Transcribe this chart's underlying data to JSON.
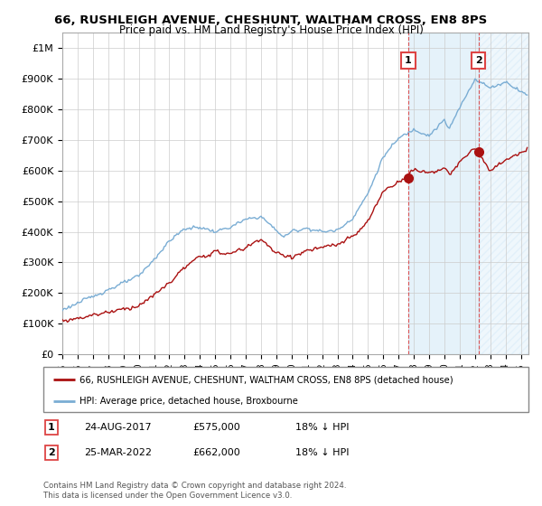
{
  "title": "66, RUSHLEIGH AVENUE, CHESHUNT, WALTHAM CROSS, EN8 8PS",
  "subtitle": "Price paid vs. HM Land Registry's House Price Index (HPI)",
  "ylim": [
    0,
    1050000
  ],
  "yticks": [
    0,
    100000,
    200000,
    300000,
    400000,
    500000,
    600000,
    700000,
    800000,
    900000,
    1000000
  ],
  "ytick_labels": [
    "£0",
    "£100K",
    "£200K",
    "£300K",
    "£400K",
    "£500K",
    "£600K",
    "£700K",
    "£800K",
    "£900K",
    "£1M"
  ],
  "hpi_color": "#7aadd4",
  "price_color": "#aa1111",
  "vline_color": "#dd4444",
  "shade_color": "#ddeeff",
  "marker1_year": 2017.64,
  "marker1_price": 575000,
  "marker1_label": "1",
  "marker1_date_str": "24-AUG-2017",
  "marker1_amount": "£575,000",
  "marker1_hpi": "18% ↓ HPI",
  "marker2_year": 2022.23,
  "marker2_price": 662000,
  "marker2_label": "2",
  "marker2_date_str": "25-MAR-2022",
  "marker2_amount": "£662,000",
  "marker2_hpi": "18% ↓ HPI",
  "legend_line1": "66, RUSHLEIGH AVENUE, CHESHUNT, WALTHAM CROSS, EN8 8PS (detached house)",
  "legend_line2": "HPI: Average price, detached house, Broxbourne",
  "footer1": "Contains HM Land Registry data © Crown copyright and database right 2024.",
  "footer2": "This data is licensed under the Open Government Licence v3.0.",
  "xmin": 1995,
  "xmax": 2025.5
}
